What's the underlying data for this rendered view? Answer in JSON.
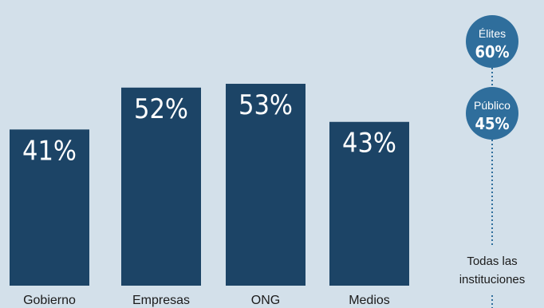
{
  "chart_data": {
    "type": "bar",
    "categories": [
      "Gobierno",
      "Empresas",
      "ONG",
      "Medios"
    ],
    "values": [
      41,
      52,
      53,
      43
    ],
    "value_labels": [
      "41%",
      "52%",
      "53%",
      "43%"
    ],
    "ylim": [
      0,
      75
    ],
    "grid": false,
    "colors": {
      "background": "#d3e0ea",
      "bar": "#1c4466",
      "bubble": "#2f6e9c",
      "connector": "#2f6e9c",
      "text_dark": "#1b1b1b",
      "text_light": "#ffffff"
    },
    "side_indicator": {
      "label": "Todas las instituciones",
      "label_lines": [
        "Todas las",
        "instituciones"
      ],
      "bubbles": [
        {
          "name": "Élites",
          "value": 60,
          "value_label": "60%"
        },
        {
          "name": "Público",
          "value": 45,
          "value_label": "45%"
        }
      ]
    }
  }
}
